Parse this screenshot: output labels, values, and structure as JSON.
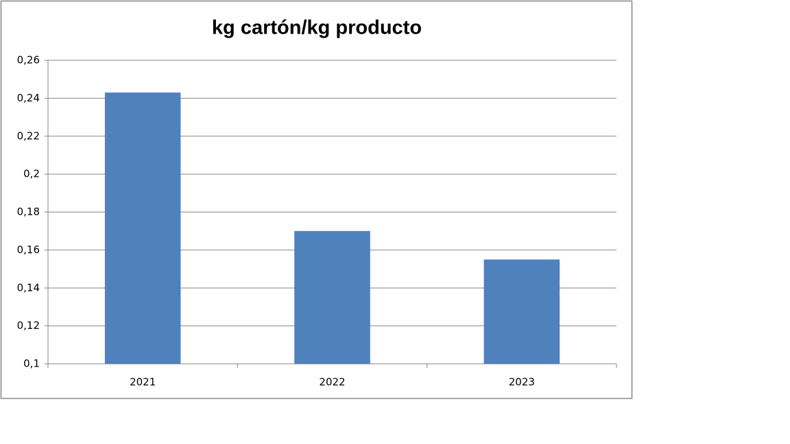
{
  "chart_data": {
    "type": "bar",
    "title": "kg cartón/kg producto",
    "categories": [
      "2021",
      "2022",
      "2023"
    ],
    "values": [
      0.243,
      0.17,
      0.155
    ],
    "color": "#4f81bd",
    "ylim": [
      0.1,
      0.26
    ],
    "yticks": [
      {
        "value": 0.1,
        "label": "0,1"
      },
      {
        "value": 0.12,
        "label": "0,12"
      },
      {
        "value": 0.14,
        "label": "0,14"
      },
      {
        "value": 0.16,
        "label": "0,16"
      },
      {
        "value": 0.18,
        "label": "0,18"
      },
      {
        "value": 0.2,
        "label": "0,2"
      },
      {
        "value": 0.22,
        "label": "0,22"
      },
      {
        "value": 0.24,
        "label": "0,24"
      },
      {
        "value": 0.26,
        "label": "0,26"
      }
    ],
    "grid": true
  }
}
